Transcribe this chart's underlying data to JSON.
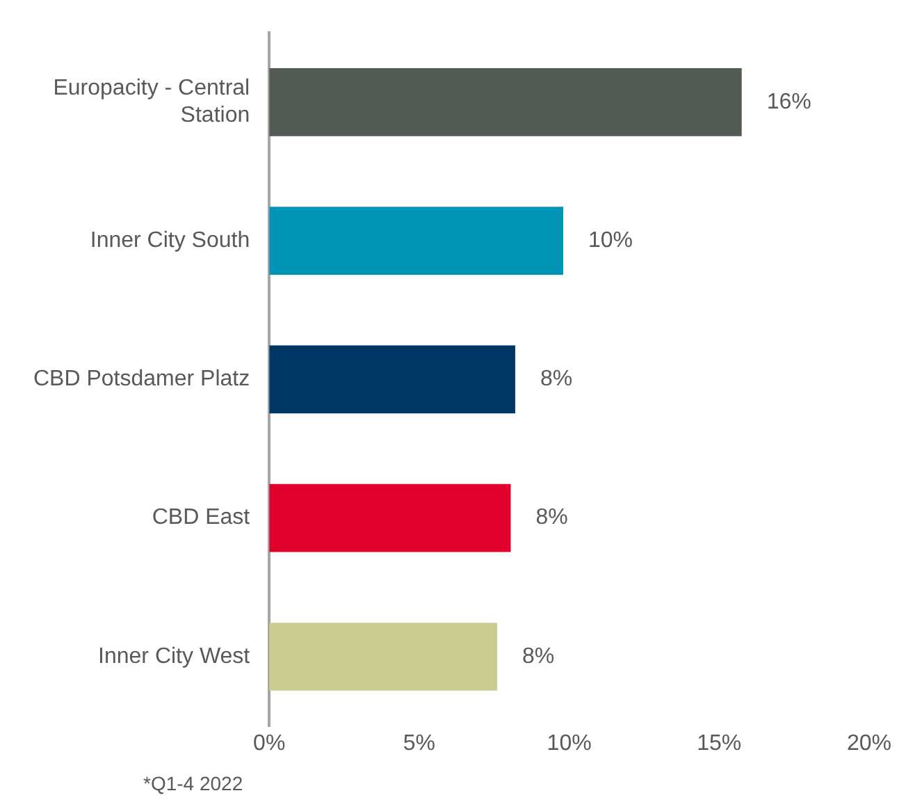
{
  "chart_data": {
    "type": "bar",
    "orientation": "horizontal",
    "categories": [
      "Europacity - Central Station",
      "Inner City South",
      "CBD Potsdamer Platz",
      "CBD East",
      "Inner City West"
    ],
    "values": [
      15.75,
      9.8,
      8.2,
      8.05,
      7.6
    ],
    "colors": [
      "#525a54",
      "#0095b6",
      "#003764",
      "#e0002b",
      "#cbcc90"
    ],
    "value_labels": [
      "16%",
      "10%",
      "8%",
      "8%",
      "8%"
    ],
    "xlim": [
      0,
      20
    ],
    "xticks": [
      {
        "value": 0,
        "label": "0%"
      },
      {
        "value": 5,
        "label": "5%"
      },
      {
        "value": 10,
        "label": "10%"
      },
      {
        "value": 15,
        "label": "15%"
      },
      {
        "value": 20,
        "label": "20%"
      }
    ],
    "grid": false,
    "legend": false,
    "annotations": [
      "*Q1-4 2022"
    ]
  }
}
